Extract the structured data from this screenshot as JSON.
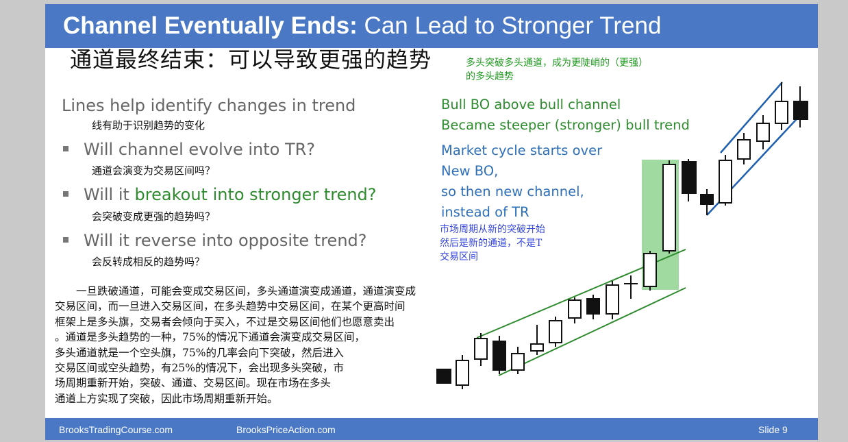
{
  "header": {
    "title_bold": "Channel Eventually Ends:",
    "title_rest": " Can Lead to Stronger Trend"
  },
  "cn_title": "通道最终结束：可以导致更强的趋势",
  "left": {
    "line1": "Lines help identify changes in trend",
    "line1_cn": "线有助于识别趋势的变化",
    "bullets": [
      {
        "pre": "Will channel evolve into TR?",
        "highlight": "",
        "post": "",
        "cn": "通道会演变为交易区间吗？"
      },
      {
        "pre": "Will it ",
        "highlight": "breakout into stronger trend?",
        "post": "",
        "cn": "会突破变成更强的趋势吗？"
      },
      {
        "pre": "Will it reverse into opposite trend?",
        "highlight": "",
        "post": "",
        "cn": "会反转成相反的趋势吗？"
      }
    ]
  },
  "paragraph": [
    "　　一旦跌破通道，可能会变成交易区间，多头通道演变成通道，通道演变成",
    "交易区间，而一旦进入交易区间，在多头趋势中交易区间，在某个更高时间",
    "框架上是多头旗，交易者会倾向于买入，不过是交易区间他们也愿意卖出",
    "。通道是多头趋势的一种，75%的情况下通道会演变成交易区间，",
    "多头通道就是一个空头旗，75%的几率会向下突破，然后进入",
    "交易区间或空头趋势，有25%的情况下，会出现多头突破，市",
    "场周期重新开始，突破、通道、交易区间。现在市场在多头",
    "通道上方实现了突破，因此市场周期重新开始。"
  ],
  "right": {
    "green_cn": [
      "多头突破多头通道，成为更陡峭的（更强）",
      "的多头趋势"
    ],
    "bo_lines": [
      "Bull BO above bull channel",
      "Became steeper (stronger) bull trend"
    ],
    "cycle_lines": [
      "Market cycle starts over",
      "New BO,",
      "so then new channel,",
      "instead of TR"
    ],
    "cycle_cn": [
      "市场周期从新的突破开始",
      "然后是新的通道，不是T",
      "交易区间"
    ]
  },
  "footer": {
    "left": "BrooksTradingCourse.com",
    "mid": "BrooksPriceAction.com",
    "right": "Slide  9"
  },
  "colors": {
    "header_bg": "#4a78c4",
    "green_text": "#2e8b2e",
    "blue_text": "#2e6fb8",
    "highlight_box": "#8fd48f",
    "channel_line_green": "#2e8b2e",
    "channel_line_blue": "#1f5fb0"
  }
}
